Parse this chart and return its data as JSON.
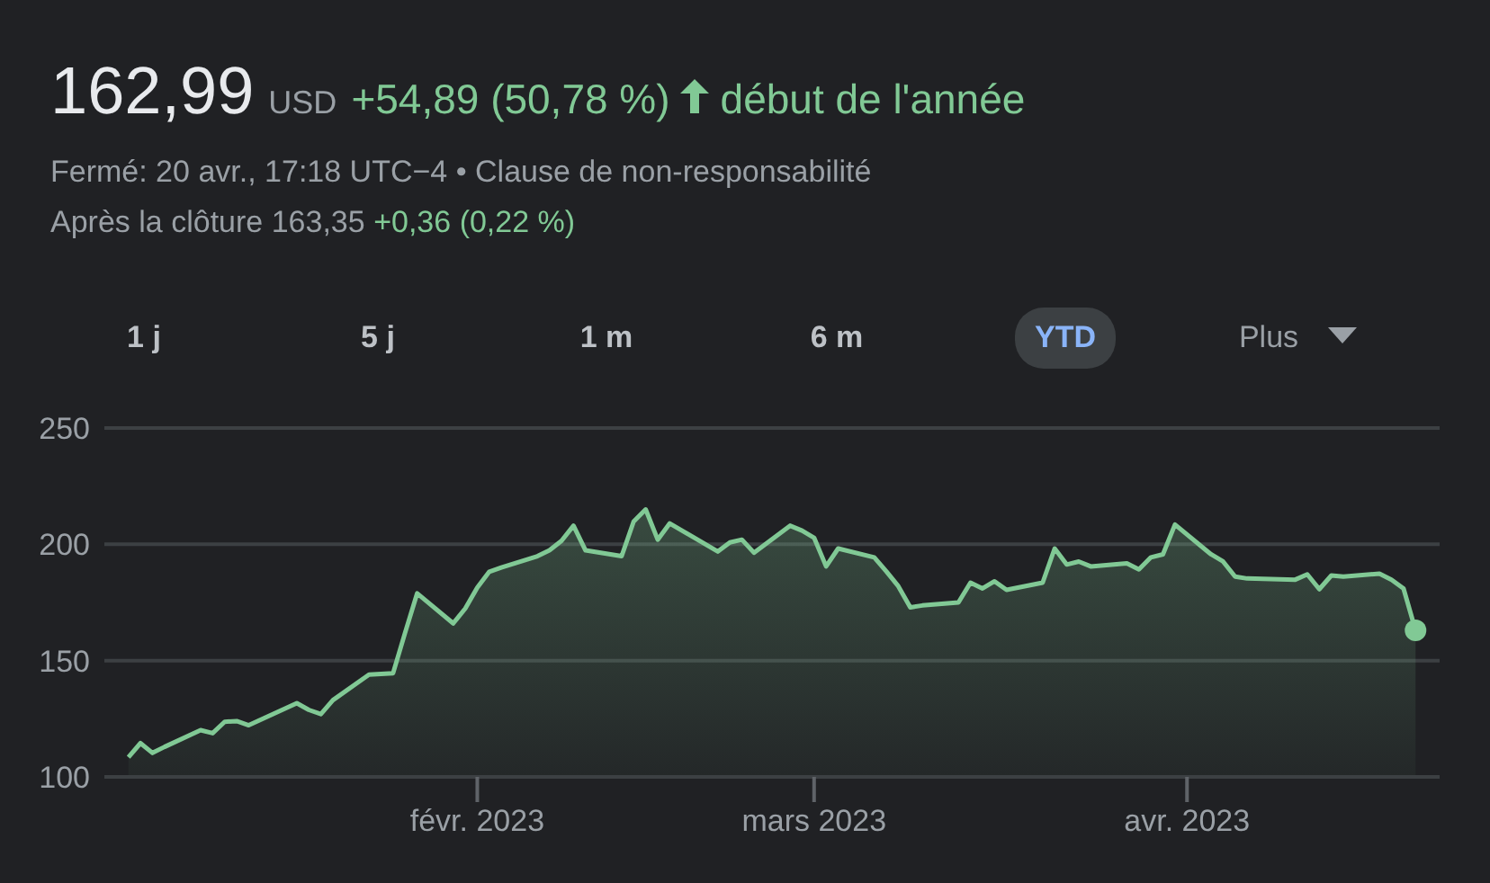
{
  "chart_data": {
    "type": "area",
    "title": "162,99",
    "subtitle": "Fermé: 20 avr., 17:18 UTC−4 • Clause de non-responsabilité",
    "annotations": [
      "USD",
      "+54,89 (50,78 %)",
      "début de l'année",
      "Après la clôture 163,35",
      "+0,36 (0,22 %)",
      "1 j",
      "5 j",
      "1 m",
      "6 m",
      "YTD",
      "Plus"
    ],
    "x": [
      "2023-01-03",
      "2023-01-04",
      "2023-01-05",
      "2023-01-06",
      "2023-01-09",
      "2023-01-10",
      "2023-01-11",
      "2023-01-12",
      "2023-01-13",
      "2023-01-17",
      "2023-01-18",
      "2023-01-19",
      "2023-01-20",
      "2023-01-23",
      "2023-01-24",
      "2023-01-25",
      "2023-01-26",
      "2023-01-27",
      "2023-01-30",
      "2023-01-31",
      "2023-02-01",
      "2023-02-02",
      "2023-02-03",
      "2023-02-06",
      "2023-02-07",
      "2023-02-08",
      "2023-02-09",
      "2023-02-10",
      "2023-02-13",
      "2023-02-14",
      "2023-02-15",
      "2023-02-16",
      "2023-02-17",
      "2023-02-21",
      "2023-02-22",
      "2023-02-23",
      "2023-02-24",
      "2023-02-27",
      "2023-02-28",
      "2023-03-01",
      "2023-03-02",
      "2023-03-03",
      "2023-03-06",
      "2023-03-07",
      "2023-03-08",
      "2023-03-09",
      "2023-03-10",
      "2023-03-13",
      "2023-03-14",
      "2023-03-15",
      "2023-03-16",
      "2023-03-17",
      "2023-03-20",
      "2023-03-21",
      "2023-03-22",
      "2023-03-23",
      "2023-03-24",
      "2023-03-27",
      "2023-03-28",
      "2023-03-29",
      "2023-03-30",
      "2023-03-31",
      "2023-04-03",
      "2023-04-04",
      "2023-04-05",
      "2023-04-06",
      "2023-04-10",
      "2023-04-11",
      "2023-04-12",
      "2023-04-13",
      "2023-04-14",
      "2023-04-17",
      "2023-04-18",
      "2023-04-19",
      "2023-04-20"
    ],
    "series": [
      {
        "color": "#81c995",
        "values": [
          108.5,
          114.5,
          110.3,
          112.9,
          120.1,
          118.8,
          123.7,
          124,
          122.2,
          131.7,
          128.8,
          127,
          133,
          144,
          144.3,
          144.6,
          162,
          178.9,
          166,
          172.4,
          181.4,
          188.2,
          190,
          194.9,
          197.4,
          201.5,
          208,
          197.4,
          194.9,
          209.8,
          215,
          202,
          209,
          196.9,
          200.8,
          202,
          196.4,
          208,
          205.9,
          202.8,
          190.5,
          198.2,
          194.4,
          188.4,
          182,
          172.9,
          173.7,
          175,
          183.5,
          181,
          184.1,
          180.4,
          183.5,
          198.2,
          191.3,
          192.6,
          190.5,
          191.8,
          189.2,
          194.4,
          195.7,
          208.5,
          195.7,
          192.6,
          186.1,
          185.3,
          184.8,
          187.1,
          180.7,
          186.6,
          186.1,
          187.4,
          184.8,
          181,
          163
        ]
      }
    ],
    "xlim": [
      "2023-01-01",
      "2023-04-22"
    ],
    "xticks": [
      {
        "value": "2023-02-01",
        "label": "févr. 2023"
      },
      {
        "value": "2023-03-01",
        "label": "mars 2023"
      },
      {
        "value": "2023-04-01",
        "label": "avr. 2023"
      }
    ],
    "ylim": [
      100,
      250
    ],
    "yticks": [
      100,
      150,
      200,
      250
    ],
    "grid": "y",
    "legend": false
  }
}
